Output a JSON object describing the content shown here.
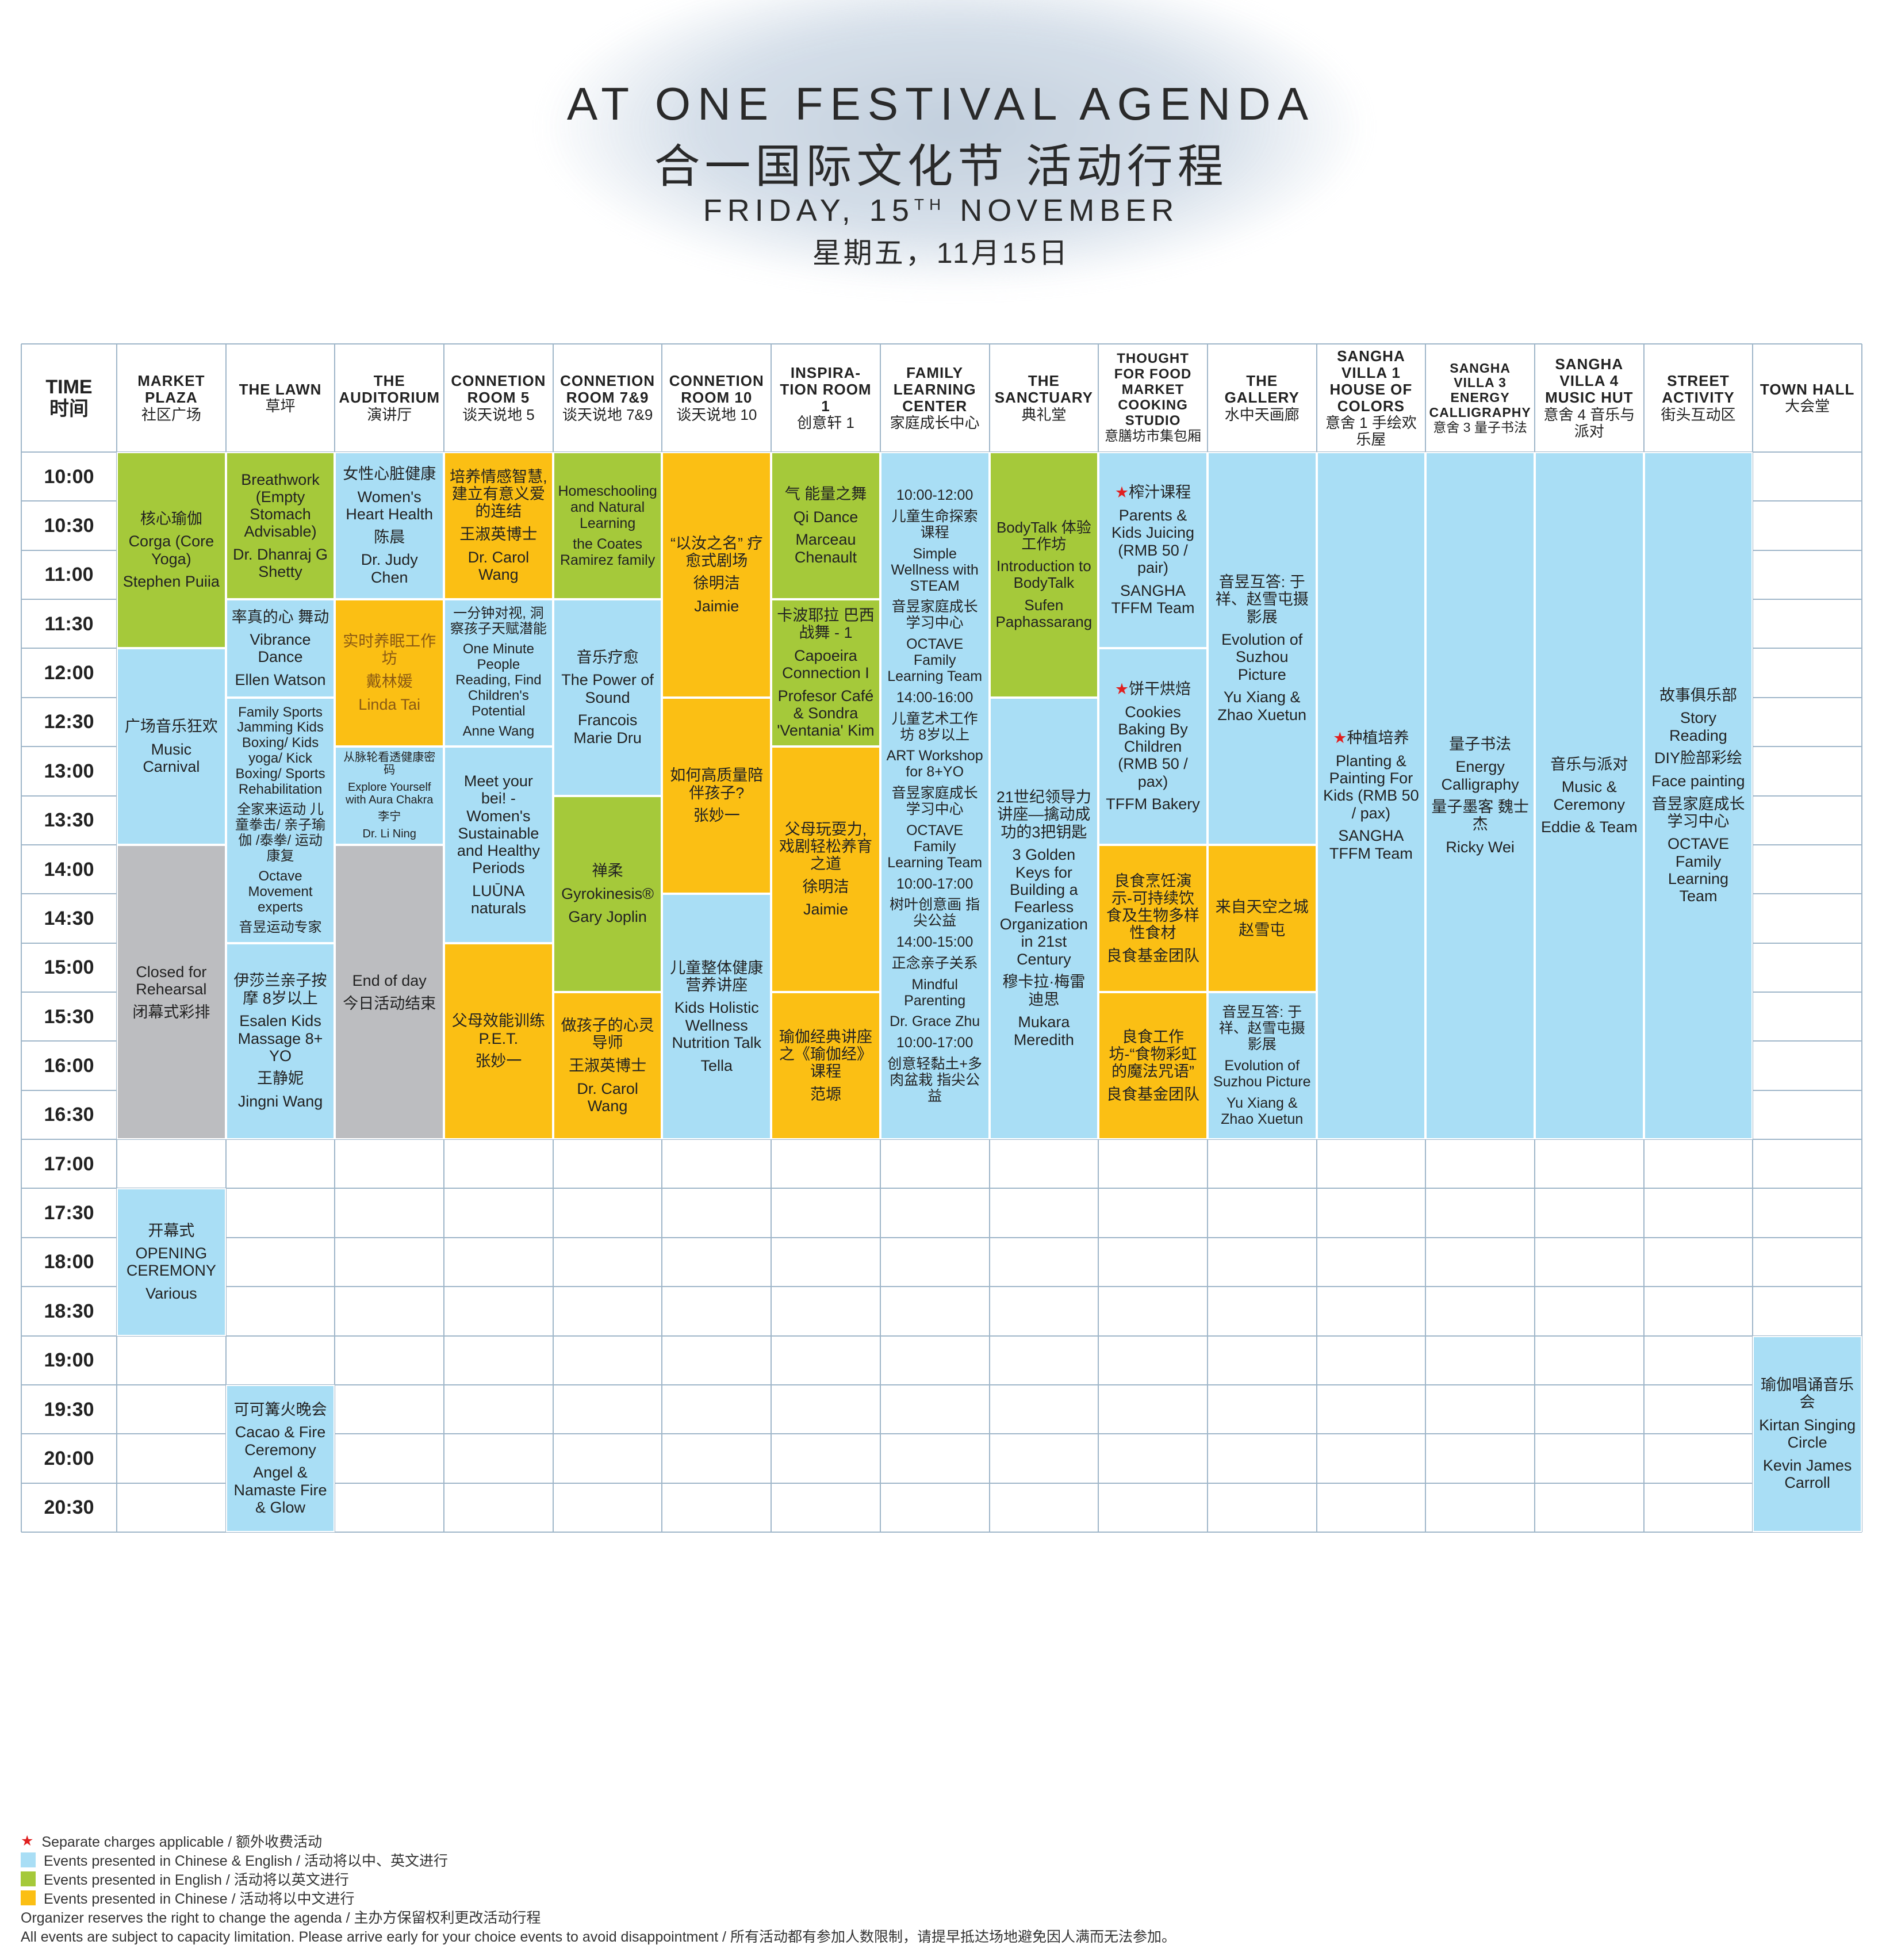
{
  "header": {
    "title": "AT ONE FESTIVAL AGENDA",
    "title_cn": "合一国际文化节 活动行程",
    "date_pre": "FRIDAY, 15",
    "date_sup": "TH",
    "date_post": " NOVEMBER",
    "date_cn": "星期五，11月15日"
  },
  "table": {
    "time_header": [
      "TIME",
      "时间"
    ],
    "times": [
      "10:00",
      "10:30",
      "11:00",
      "11:30",
      "12:00",
      "12:30",
      "13:00",
      "13:30",
      "14:00",
      "14:30",
      "15:00",
      "15:30",
      "16:00",
      "16:30",
      "17:00",
      "17:30",
      "18:00",
      "18:30",
      "19:00",
      "19:30",
      "20:00",
      "20:30"
    ],
    "columns": [
      {
        "name": "MARKET PLAZA",
        "name_cn": "社区广场",
        "events": [
          {
            "from": "10:00",
            "to": "11:30",
            "color": "#a5c93a",
            "lines": [
              "核心瑜伽",
              "Corga (Core Yoga)",
              "Stephen Puiia"
            ]
          },
          {
            "from": "12:00",
            "to": "13:30",
            "color": "#a9def5",
            "lines": [
              "广场音乐狂欢",
              "Music Carnival"
            ]
          },
          {
            "from": "14:00",
            "to": "16:30",
            "color": "#bcbdc0",
            "lines": [
              "Closed for Rehearsal",
              "闭幕式彩排"
            ]
          },
          {
            "from": "17:30",
            "to": "18:30",
            "color": "#a9def5",
            "lines": [
              "开幕式",
              "OPENING CEREMONY",
              "Various"
            ]
          }
        ]
      },
      {
        "name": "THE LAWN",
        "name_cn": "草坪",
        "events": [
          {
            "from": "10:00",
            "to": "11:00",
            "color": "#a5c93a",
            "lines": [
              "Breathwork (Empty Stomach Advisable)",
              "Dr. Dhanraj G Shetty"
            ]
          },
          {
            "from": "11:30",
            "to": "12:00",
            "color": "#a9def5",
            "lines": [
              "率真的心 舞动",
              "Vibrance Dance",
              "Ellen Watson"
            ]
          },
          {
            "from": "12:30",
            "to": "14:30",
            "color": "#a9def5",
            "lines": [
              "Family Sports Jamming Kids Boxing/ Kids yoga/ Kick Boxing/ Sports Rehabilitation",
              "全家来运动 儿童拳击/ 亲子瑜伽 /泰拳/ 运动康复",
              "Octave Movement experts",
              "音昱运动专家"
            ]
          },
          {
            "from": "15:00",
            "to": "16:30",
            "color": "#a9def5",
            "lines": [
              "伊莎兰亲子按摩 8岁以上",
              "Esalen Kids Massage 8+ YO",
              "王静妮",
              "Jingni Wang"
            ]
          },
          {
            "from": "19:30",
            "to": "20:30",
            "color": "#a9def5",
            "lines": [
              "可可篝火晚会",
              "Cacao & Fire Ceremony",
              "Angel & Namaste Fire & Glow"
            ]
          }
        ]
      },
      {
        "name": "THE AUDITORIUM",
        "name_cn": "演讲厅",
        "events": [
          {
            "from": "10:00",
            "to": "11:00",
            "color": "#a9def5",
            "lines": [
              "女性心脏健康",
              "Women's Heart Health",
              "陈晨",
              "Dr. Judy Chen"
            ]
          },
          {
            "from": "11:30",
            "to": "12:30",
            "color": "#fbbf14",
            "text_color": "#8a5a14",
            "lines": [
              "实时养眠工作坊",
              "戴林媛",
              "Linda Tai"
            ]
          },
          {
            "from": "13:00",
            "to": "13:30",
            "color": "#a9def5",
            "lines": [
              "从脉轮看透健康密码",
              "Explore Yourself with Aura Chakra",
              "李宁",
              "Dr. Li Ning"
            ]
          },
          {
            "from": "14:00",
            "to": "16:30",
            "color": "#bcbdc0",
            "lines": [
              "End of day",
              "今日活动结束"
            ]
          }
        ]
      },
      {
        "name": "CONNETION ROOM 5",
        "name_cn": "谈天说地 5",
        "events": [
          {
            "from": "10:00",
            "to": "11:00",
            "color": "#fbbf14",
            "lines": [
              "培养情感智慧, 建立有意义爱的连结",
              "王淑英博士",
              "Dr. Carol Wang"
            ]
          },
          {
            "from": "11:30",
            "to": "12:30",
            "color": "#a9def5",
            "lines": [
              "一分钟对视, 洞察孩子天赋潜能",
              "One Minute People Reading, Find Children's Potential",
              "Anne Wang"
            ]
          },
          {
            "from": "13:00",
            "to": "14:30",
            "color": "#a9def5",
            "lines": [
              "Meet your bei! - Women's Sustainable and Healthy Periods",
              "LUŪNA naturals"
            ]
          },
          {
            "from": "15:00",
            "to": "16:30",
            "color": "#fbbf14",
            "lines": [
              "父母效能训练 P.E.T.",
              "张妙一"
            ]
          }
        ]
      },
      {
        "name": "CONNETION ROOM 7&9",
        "name_cn": "谈天说地 7&9",
        "events": [
          {
            "from": "10:00",
            "to": "11:00",
            "color": "#a5c93a",
            "lines": [
              "Homeschooling and Natural Learning",
              "the Coates Ramirez family"
            ]
          },
          {
            "from": "11:30",
            "to": "13:00",
            "color": "#a9def5",
            "lines": [
              "音乐疗愈",
              "The Power of Sound",
              "Francois Marie Dru"
            ]
          },
          {
            "from": "13:30",
            "to": "15:00",
            "color": "#a5c93a",
            "lines": [
              "禅柔",
              "Gyrokinesis®",
              "Gary Joplin"
            ]
          },
          {
            "from": "15:30",
            "to": "16:30",
            "color": "#fbbf14",
            "lines": [
              "做孩子的心灵导师",
              "王淑英博士",
              "Dr. Carol Wang"
            ]
          }
        ]
      },
      {
        "name": "CONNETION ROOM 10",
        "name_cn": "谈天说地 10",
        "events": [
          {
            "from": "10:00",
            "to": "12:00",
            "color": "#fbbf14",
            "lines": [
              "“以汝之名” 疗愈式剧场",
              "徐明洁",
              "Jaimie"
            ]
          },
          {
            "from": "12:30",
            "to": "14:00",
            "color": "#fbbf14",
            "lines": [
              "如何高质量陪伴孩子?",
              "张妙一"
            ]
          },
          {
            "from": "14:30",
            "to": "16:30",
            "color": "#a9def5",
            "lines": [
              "儿童整体健康营养讲座",
              "Kids Holistic Wellness Nutrition Talk",
              "Tella"
            ]
          }
        ]
      },
      {
        "name": "INSPIRA-TION ROOM 1",
        "name_cn": "创意轩 1",
        "events": [
          {
            "from": "10:00",
            "to": "11:00",
            "color": "#a5c93a",
            "lines": [
              "气 能量之舞",
              "Qi Dance",
              "Marceau Chenault"
            ]
          },
          {
            "from": "11:30",
            "to": "12:30",
            "color": "#a5c93a",
            "lines": [
              "卡波耶拉 巴西战舞 - 1",
              "Capoeira Connection I",
              "Profesor Café & Sondra 'Ventania' Kim"
            ]
          },
          {
            "from": "13:00",
            "to": "15:00",
            "color": "#fbbf14",
            "lines": [
              "父母玩耍力, 戏剧轻松养育之道",
              "徐明洁",
              "Jaimie"
            ]
          },
          {
            "from": "15:30",
            "to": "16:30",
            "color": "#fbbf14",
            "lines": [
              "瑜伽经典讲座之《瑜伽经》课程",
              "范塬"
            ]
          }
        ]
      },
      {
        "name": "FAMILY LEARNING CENTER",
        "name_cn": "家庭成长中心",
        "events": [
          {
            "from": "10:00",
            "to": "16:30",
            "color": "#a9def5",
            "lines": [
              "10:00-12:00",
              "儿童生命探索课程",
              "Simple Wellness with STEAM",
              "音昱家庭成长学习中心",
              "OCTAVE Family Learning Team",
              "14:00-16:00",
              "儿童艺术工作坊 8岁以上",
              "ART Workshop for 8+YO",
              "音昱家庭成长学习中心",
              "OCTAVE Family Learning Team",
              "10:00-17:00",
              "树叶创意画 指尖公益",
              "14:00-15:00",
              "正念亲子关系",
              "Mindful Parenting",
              "Dr. Grace Zhu",
              "10:00-17:00",
              "创意轻黏土+多肉盆栽 指尖公益"
            ]
          }
        ]
      },
      {
        "name": "THE SANCTUARY",
        "name_cn": "典礼堂",
        "events": [
          {
            "from": "10:00",
            "to": "12:00",
            "color": "#a5c93a",
            "lines": [
              "BodyTalk 体验工作坊",
              "Introduction to BodyTalk",
              "Sufen Paphassarang"
            ]
          },
          {
            "from": "12:30",
            "to": "16:30",
            "color": "#a9def5",
            "lines": [
              "21世纪领导力讲座—擒动成功的3把钥匙",
              "3 Golden Keys for Building a Fearless Organization in 21st Century",
              "穆卡拉·梅雷迪思",
              "Mukara Meredith"
            ]
          }
        ]
      },
      {
        "name": "THOUGHT FOR FOOD MARKET COOKING STUDIO",
        "name_cn": "意膳坊市集包厢",
        "events": [
          {
            "from": "10:00",
            "to": "11:30",
            "color": "#a9def5",
            "star": "★",
            "lines": [
              "榨汁课程",
              "Parents & Kids Juicing (RMB 50 / pair)",
              "SANGHA TFFM Team"
            ]
          },
          {
            "from": "12:00",
            "to": "13:30",
            "color": "#a9def5",
            "star": "★",
            "lines": [
              "饼干烘焙",
              "Cookies Baking By Children (RMB 50 / pax)",
              "TFFM Bakery"
            ]
          },
          {
            "from": "14:00",
            "to": "15:00",
            "color": "#fbbf14",
            "lines": [
              "良食烹饪演示-可持续饮食及生物多样性食材",
              "良食基金团队"
            ]
          },
          {
            "from": "15:30",
            "to": "16:30",
            "color": "#fbbf14",
            "lines": [
              "良食工作坊-“食物彩虹的魔法咒语”",
              "良食基金团队"
            ]
          }
        ]
      },
      {
        "name": "THE GALLERY",
        "name_cn": "水中天画廊",
        "events": [
          {
            "from": "10:00",
            "to": "13:30",
            "color": "#a9def5",
            "lines": [
              "音昱互答: 于祥、赵雪屯摄影展",
              "Evolution of Suzhou Picture",
              "Yu Xiang & Zhao Xuetun"
            ]
          },
          {
            "from": "14:00",
            "to": "15:00",
            "color": "#fbbf14",
            "lines": [
              "来自天空之城",
              "赵雪屯"
            ]
          },
          {
            "from": "15:30",
            "to": "16:30",
            "color": "#a9def5",
            "lines": [
              "音昱互答: 于祥、赵雪屯摄影展",
              "Evolution of Suzhou Picture",
              "Yu Xiang & Zhao Xuetun"
            ]
          }
        ]
      },
      {
        "name": "SANGHA VILLA 1 HOUSE OF COLORS",
        "name_cn": "意舍 1 手绘欢乐屋",
        "events": [
          {
            "from": "10:00",
            "to": "16:30",
            "color": "#a9def5",
            "star": "★",
            "lines": [
              "种植培养",
              "Planting & Painting For Kids (RMB 50 / pax)",
              "SANGHA TFFM Team"
            ]
          }
        ]
      },
      {
        "name": "SANGHA VILLA 3 ENERGY CALLIGRAPHY",
        "name_cn": "意舍 3 量子书法",
        "events": [
          {
            "from": "10:00",
            "to": "16:30",
            "color": "#a9def5",
            "lines": [
              "量子书法",
              "Energy Calligraphy",
              "量子墨客 魏士杰",
              "Ricky Wei"
            ]
          }
        ]
      },
      {
        "name": "SANGHA VILLA 4 MUSIC HUT",
        "name_cn": "意舍 4 音乐与派对",
        "events": [
          {
            "from": "10:00",
            "to": "16:30",
            "color": "#a9def5",
            "lines": [
              "音乐与派对",
              "Music & Ceremony",
              "Eddie & Team"
            ]
          }
        ]
      },
      {
        "name": "STREET ACTIVITY",
        "name_cn": "街头互动区",
        "events": [
          {
            "from": "10:00",
            "to": "16:30",
            "color": "#a9def5",
            "lines": [
              "故事俱乐部",
              "Story Reading",
              "DIY脸部彩绘",
              "Face painting",
              "音昱家庭成长学习中心",
              "OCTAVE Family Learning Team"
            ]
          }
        ]
      },
      {
        "name": "TOWN HALL",
        "name_cn": "大会堂",
        "events": [
          {
            "from": "19:00",
            "to": "20:30",
            "color": "#a9def5",
            "lines": [
              "瑜伽唱诵音乐会",
              "Kirtan Singing Circle",
              "Kevin James Carroll"
            ]
          }
        ]
      }
    ]
  },
  "legend": {
    "star": "★",
    "star_text": "Separate charges applicable  /  额外收费活动",
    "items": [
      {
        "color": "#a9def5",
        "text": "Events presented in Chinese & English  /  活动将以中、英文进行"
      },
      {
        "color": "#a5c93a",
        "text": "Events presented in English  /  活动将以英文进行"
      },
      {
        "color": "#fbbf14",
        "text": "Events presented in Chinese  /  活动将以中文进行"
      }
    ],
    "notes": [
      "Organizer reserves the right to change the agenda  /  主办方保留权利更改活动行程",
      "All events are subject to capacity limitation.  Please arrive early for your choice events to avoid disappointment  /  所有活动都有参加人数限制，请提早抵达场地避免因人满而无法参加。"
    ]
  }
}
